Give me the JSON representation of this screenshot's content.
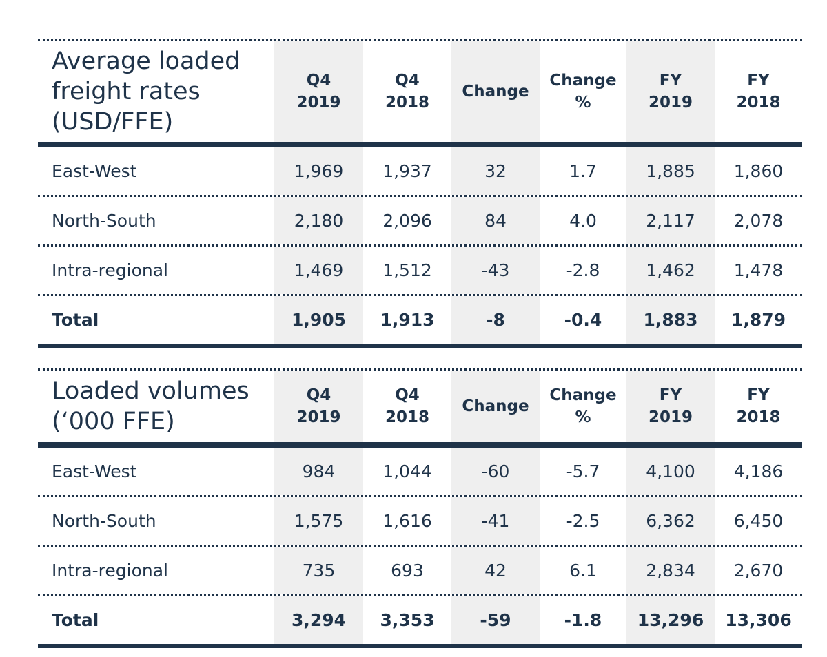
{
  "tables": [
    {
      "title": "Average loaded\nfreight rates\n(USD/FFE)",
      "columns": [
        "Q4\n2019",
        "Q4\n2018",
        "Change",
        "Change\n%",
        "FY\n2019",
        "FY\n2018"
      ],
      "rows": [
        {
          "label": "East-West",
          "values": [
            "1,969",
            "1,937",
            "32",
            "1.7",
            "1,885",
            "1,860"
          ]
        },
        {
          "label": "North-South",
          "values": [
            "2,180",
            "2,096",
            "84",
            "4.0",
            "2,117",
            "2,078"
          ]
        },
        {
          "label": "Intra-regional",
          "values": [
            "1,469",
            "1,512",
            "-43",
            "-2.8",
            "1,462",
            "1,478"
          ]
        },
        {
          "label": "Total",
          "values": [
            "1,905",
            "1,913",
            "-8",
            "-0.4",
            "1,883",
            "1,879"
          ]
        }
      ]
    },
    {
      "title": "Loaded volumes\n(‘000 FFE)",
      "columns": [
        "Q4\n2019",
        "Q4\n2018",
        "Change",
        "Change\n%",
        "FY\n2019",
        "FY\n2018"
      ],
      "rows": [
        {
          "label": "East-West",
          "values": [
            "984",
            "1,044",
            "-60",
            "-5.7",
            "4,100",
            "4,186"
          ]
        },
        {
          "label": "North-South",
          "values": [
            "1,575",
            "1,616",
            "-41",
            "-2.5",
            "6,362",
            "6,450"
          ]
        },
        {
          "label": "Intra-regional",
          "values": [
            "735",
            "693",
            "42",
            "6.1",
            "2,834",
            "2,670"
          ]
        },
        {
          "label": "Total",
          "values": [
            "3,294",
            "3,353",
            "-59",
            "-1.8",
            "13,296",
            "13,306"
          ]
        }
      ]
    }
  ]
}
